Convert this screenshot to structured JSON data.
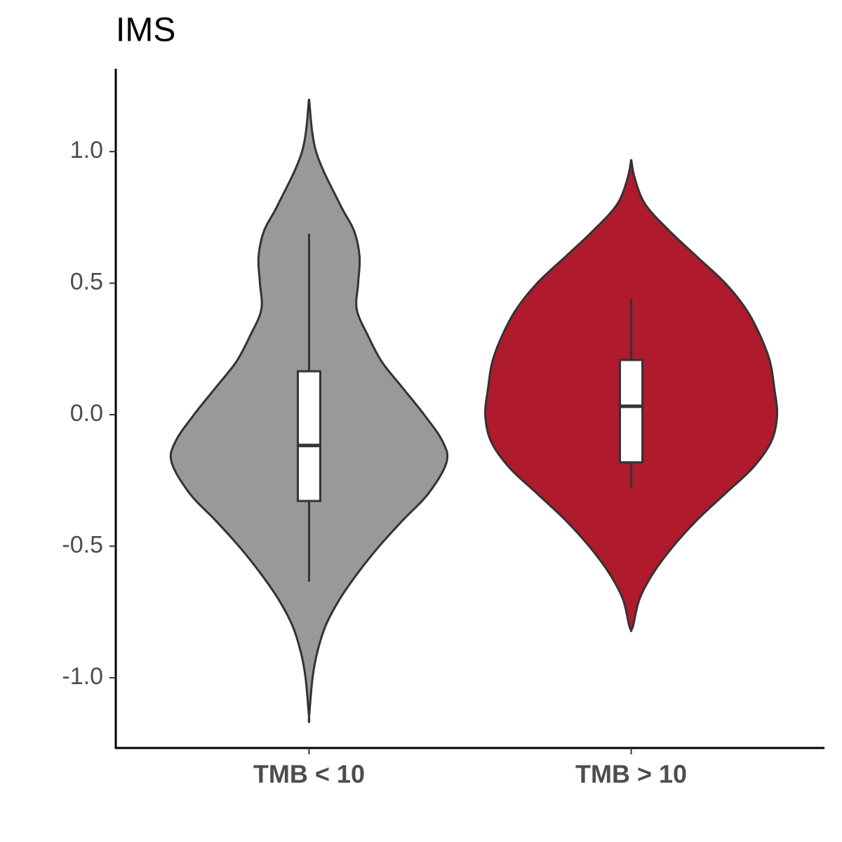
{
  "chart_data": {
    "type": "violin",
    "title": "IMS",
    "categories": [
      "TMB < 10",
      "TMB > 10"
    ],
    "ylim": [
      -1.267,
      1.315
    ],
    "yticks": [
      {
        "value": -1,
        "label": "-1.0"
      },
      {
        "value": -0.5,
        "label": "-0.5"
      },
      {
        "value": 0,
        "label": "0.0"
      },
      0.5,
      {
        "value": 1,
        "label": "1.0"
      }
    ],
    "series": [
      {
        "color": "#999999",
        "density_y": [
          1.2,
          1.0,
          0.8,
          0.7,
          0.6,
          0.5,
          0.4,
          0.3,
          0.2,
          0.1,
          0.0,
          -0.1,
          -0.18,
          -0.3,
          -0.4,
          -0.5,
          -0.6,
          -0.7,
          -0.8,
          -0.9,
          -1.0,
          -1.15
        ],
        "density": [
          0,
          0.05,
          0.22,
          0.32,
          0.36,
          0.35,
          0.34,
          0.42,
          0.52,
          0.67,
          0.82,
          0.95,
          0.98,
          0.85,
          0.67,
          0.5,
          0.35,
          0.22,
          0.12,
          0.06,
          0.025,
          0
        ],
        "whisker_low": -0.635,
        "q1": -0.328,
        "median": -0.117,
        "q3": 0.165,
        "whisker_high": 0.688
      },
      {
        "color": "#AF1A2D",
        "density_y": [
          0.97,
          0.9,
          0.8,
          0.7,
          0.6,
          0.5,
          0.4,
          0.3,
          0.2,
          0.1,
          0.0,
          -0.1,
          -0.2,
          -0.3,
          -0.4,
          -0.5,
          -0.6,
          -0.7,
          -0.8,
          -0.82
        ],
        "density": [
          0,
          0.025,
          0.1,
          0.27,
          0.47,
          0.67,
          0.82,
          0.92,
          0.99,
          1.02,
          1.04,
          1.0,
          0.87,
          0.67,
          0.47,
          0.3,
          0.16,
          0.06,
          0.015,
          0
        ],
        "whisker_low": -0.28,
        "q1": -0.181,
        "median": 0.032,
        "q3": 0.208,
        "whisker_high": 0.44
      }
    ]
  }
}
